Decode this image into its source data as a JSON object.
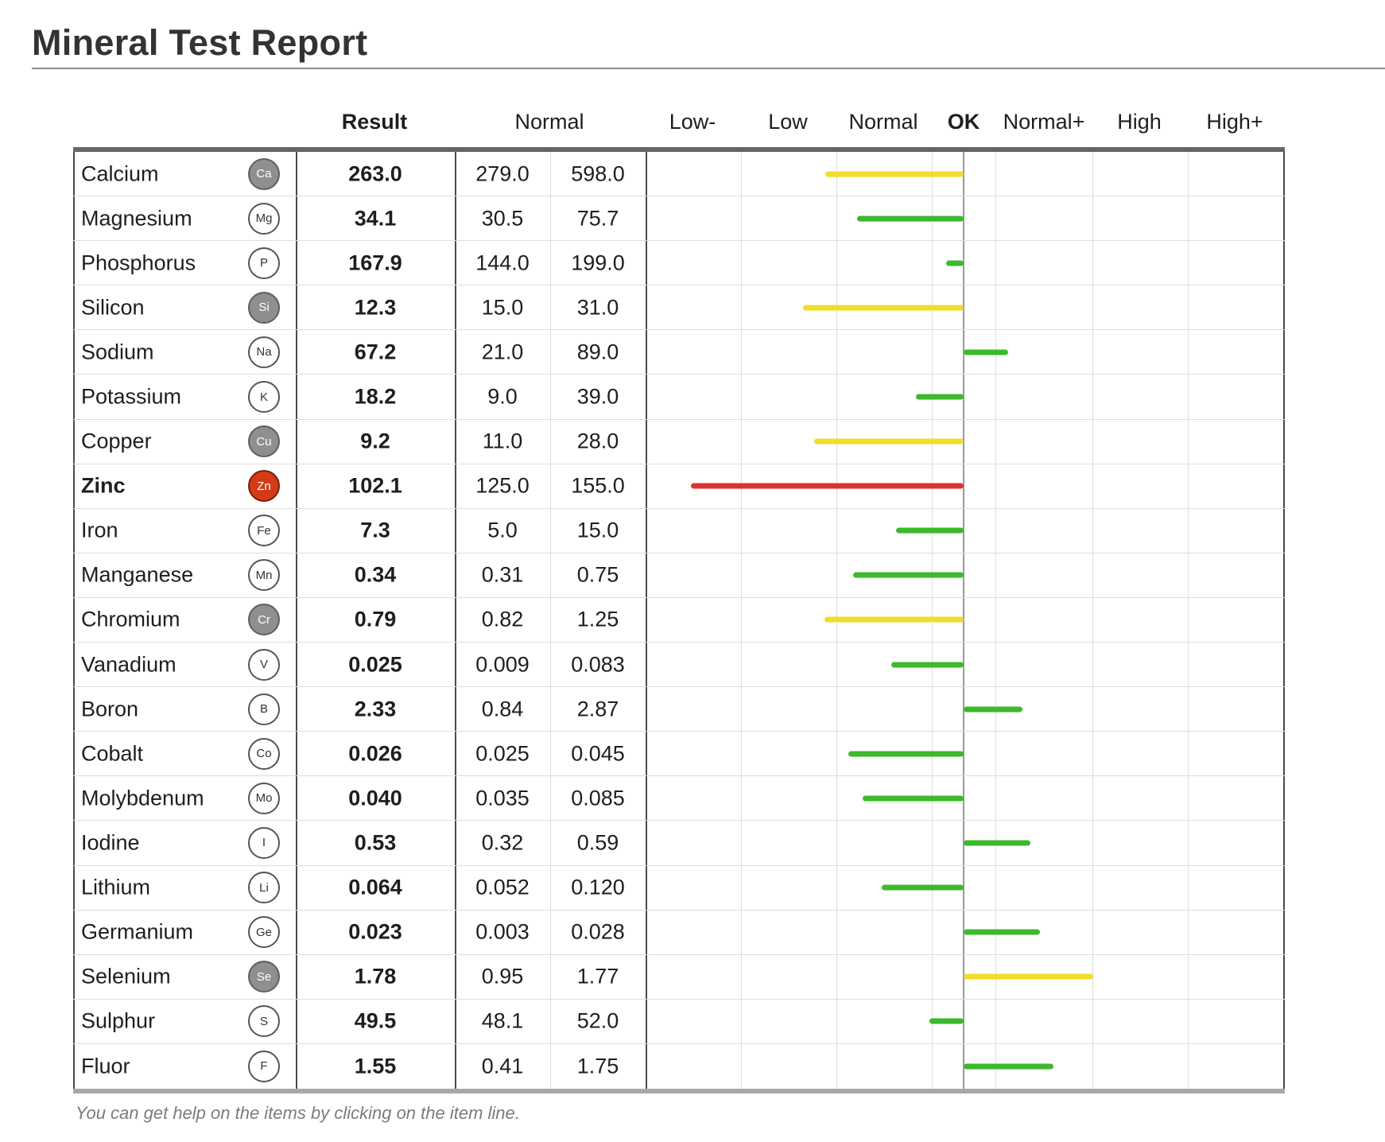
{
  "title": "Mineral Test Report",
  "headers": {
    "result": "Result",
    "normal": "Normal",
    "scale": [
      "Low-",
      "Low",
      "Normal",
      "OK",
      "Normal+",
      "High",
      "High+"
    ]
  },
  "colors": {
    "green": "#3cb92c",
    "yellow": "#f2dc2c",
    "red": "#dc3232"
  },
  "minerals": [
    {
      "name": "Calcium",
      "symbol": "Ca",
      "badge": "grey",
      "result": "263.0",
      "low": "279.0",
      "high": "598.0",
      "deviation": -1.45,
      "status": "yellow"
    },
    {
      "name": "Magnesium",
      "symbol": "Mg",
      "badge": "white",
      "result": "34.1",
      "low": "30.5",
      "high": "75.7",
      "deviation": -1.12,
      "status": "green"
    },
    {
      "name": "Phosphorus",
      "symbol": "P",
      "badge": "white",
      "result": "167.9",
      "low": "144.0",
      "high": "199.0",
      "deviation": -0.18,
      "status": "green"
    },
    {
      "name": "Silicon",
      "symbol": "Si",
      "badge": "grey",
      "result": "12.3",
      "low": "15.0",
      "high": "31.0",
      "deviation": -1.68,
      "status": "yellow"
    },
    {
      "name": "Sodium",
      "symbol": "Na",
      "badge": "white",
      "result": "67.2",
      "low": "21.0",
      "high": "89.0",
      "deviation": 0.47,
      "status": "green"
    },
    {
      "name": "Potassium",
      "symbol": "K",
      "badge": "white",
      "result": "18.2",
      "low": "9.0",
      "high": "39.0",
      "deviation": -0.5,
      "status": "green"
    },
    {
      "name": "Copper",
      "symbol": "Cu",
      "badge": "grey",
      "result": "9.2",
      "low": "11.0",
      "high": "28.0",
      "deviation": -1.57,
      "status": "yellow"
    },
    {
      "name": "Zinc",
      "symbol": "Zn",
      "badge": "red",
      "result": "102.1",
      "low": "125.0",
      "high": "155.0",
      "deviation": -2.86,
      "status": "red",
      "bold": true
    },
    {
      "name": "Iron",
      "symbol": "Fe",
      "badge": "white",
      "result": "7.3",
      "low": "5.0",
      "high": "15.0",
      "deviation": -0.71,
      "status": "green"
    },
    {
      "name": "Manganese",
      "symbol": "Mn",
      "badge": "white",
      "result": "0.34",
      "low": "0.31",
      "high": "0.75",
      "deviation": -1.16,
      "status": "green"
    },
    {
      "name": "Chromium",
      "symbol": "Cr",
      "badge": "grey",
      "result": "0.79",
      "low": "0.82",
      "high": "1.25",
      "deviation": -1.46,
      "status": "yellow"
    },
    {
      "name": "Vanadium",
      "symbol": "V",
      "badge": "white",
      "result": "0.025",
      "low": "0.009",
      "high": "0.083",
      "deviation": -0.76,
      "status": "green"
    },
    {
      "name": "Boron",
      "symbol": "B",
      "badge": "white",
      "result": "2.33",
      "low": "0.84",
      "high": "2.87",
      "deviation": 0.62,
      "status": "green"
    },
    {
      "name": "Cobalt",
      "symbol": "Co",
      "badge": "white",
      "result": "0.026",
      "low": "0.025",
      "high": "0.045",
      "deviation": -1.21,
      "status": "green"
    },
    {
      "name": "Molybdenum",
      "symbol": "Mo",
      "badge": "white",
      "result": "0.040",
      "low": "0.035",
      "high": "0.085",
      "deviation": -1.06,
      "status": "green"
    },
    {
      "name": "Iodine",
      "symbol": "I",
      "badge": "white",
      "result": "0.53",
      "low": "0.32",
      "high": "0.59",
      "deviation": 0.7,
      "status": "green"
    },
    {
      "name": "Lithium",
      "symbol": "Li",
      "badge": "white",
      "result": "0.064",
      "low": "0.052",
      "high": "0.120",
      "deviation": -0.86,
      "status": "green"
    },
    {
      "name": "Germanium",
      "symbol": "Ge",
      "badge": "white",
      "result": "0.023",
      "low": "0.003",
      "high": "0.028",
      "deviation": 0.8,
      "status": "green"
    },
    {
      "name": "Selenium",
      "symbol": "Se",
      "badge": "grey",
      "result": "1.78",
      "low": "0.95",
      "high": "1.77",
      "deviation": 1.36,
      "status": "yellow"
    },
    {
      "name": "Sulphur",
      "symbol": "S",
      "badge": "white",
      "result": "49.5",
      "low": "48.1",
      "high": "52.0",
      "deviation": -0.36,
      "status": "green"
    },
    {
      "name": "Fluor",
      "symbol": "F",
      "badge": "white",
      "result": "1.55",
      "low": "0.41",
      "high": "1.75",
      "deviation": 0.94,
      "status": "green"
    }
  ],
  "footnote": "You can get help on the items by clicking on the item line."
}
